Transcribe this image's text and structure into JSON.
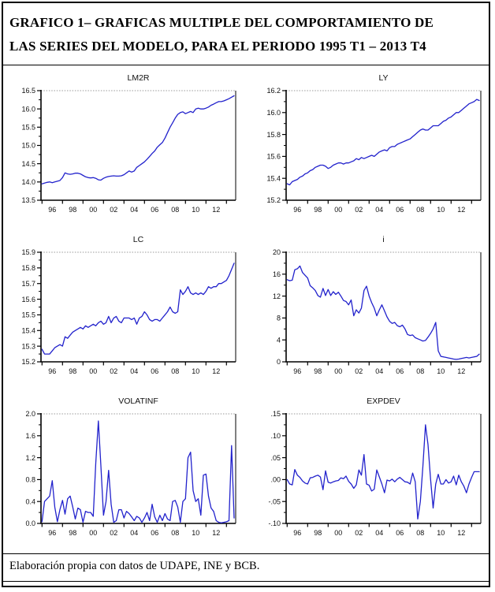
{
  "figure": {
    "title_line1": "GRAFICO 1– GRAFICAS MULTIPLE DEL COMPORTAMIENTO DE",
    "title_line2": "LAS SERIES DEL MODELO, PARA EL PERIODO 1995 T1 – 2013 T4",
    "caption": "Elaboración  propia con datos de UDAPE, INE y BCB."
  },
  "colors": {
    "series_line": "#2222cc",
    "axis": "#000000",
    "frame_dotted": "#999999",
    "text": "#111111"
  },
  "chart_data": [
    {
      "type": "line",
      "title": "LM2R",
      "x_start": 1995,
      "x_step": 0.25,
      "xlim": [
        1994.9,
        2013.9
      ],
      "xticks": [
        1995,
        1997,
        1999,
        2001,
        2003,
        2005,
        2007,
        2009,
        2011,
        2013
      ],
      "xlabel_pos": [
        1996,
        1998,
        2000,
        2002,
        2004,
        2006,
        2008,
        2010,
        2012
      ],
      "xlabels": [
        "96",
        "98",
        "00",
        "02",
        "04",
        "06",
        "08",
        "10",
        "12"
      ],
      "ylim": [
        13.5,
        16.5
      ],
      "yticks": [
        13.5,
        14.0,
        14.5,
        15.0,
        15.5,
        16.0,
        16.5
      ],
      "ytick_labels": [
        "13.5",
        "14.0",
        "14.5",
        "15.0",
        "15.5",
        "16.0",
        "16.5"
      ],
      "values": [
        13.95,
        13.97,
        13.99,
        14.0,
        13.98,
        14.0,
        14.02,
        14.04,
        14.12,
        14.25,
        14.22,
        14.21,
        14.22,
        14.24,
        14.24,
        14.22,
        14.18,
        14.14,
        14.12,
        14.11,
        14.12,
        14.1,
        14.06,
        14.05,
        14.1,
        14.13,
        14.15,
        14.16,
        14.17,
        14.16,
        14.16,
        14.17,
        14.2,
        14.25,
        14.3,
        14.27,
        14.3,
        14.4,
        14.45,
        14.5,
        14.55,
        14.62,
        14.7,
        14.78,
        14.85,
        14.95,
        15.02,
        15.08,
        15.2,
        15.35,
        15.5,
        15.62,
        15.75,
        15.85,
        15.9,
        15.92,
        15.87,
        15.9,
        15.93,
        15.9,
        16.0,
        16.02,
        16.0,
        16.0,
        16.02,
        16.05,
        16.1,
        16.13,
        16.17,
        16.2,
        16.2,
        16.22,
        16.25,
        16.28,
        16.32,
        16.36
      ]
    },
    {
      "type": "line",
      "title": "LY",
      "x_start": 1995,
      "x_step": 0.25,
      "xlim": [
        1994.9,
        2013.9
      ],
      "xticks": [
        1995,
        1997,
        1999,
        2001,
        2003,
        2005,
        2007,
        2009,
        2011,
        2013
      ],
      "xlabel_pos": [
        1996,
        1998,
        2000,
        2002,
        2004,
        2006,
        2008,
        2010,
        2012
      ],
      "xlabels": [
        "96",
        "98",
        "00",
        "02",
        "04",
        "06",
        "08",
        "10",
        "12"
      ],
      "ylim": [
        15.2,
        16.2
      ],
      "yticks": [
        15.2,
        15.4,
        15.6,
        15.8,
        16.0,
        16.2
      ],
      "ytick_labels": [
        "15.2",
        "15.4",
        "15.6",
        "15.8",
        "16.0",
        "16.2"
      ],
      "values": [
        15.35,
        15.34,
        15.37,
        15.38,
        15.39,
        15.41,
        15.42,
        15.44,
        15.45,
        15.47,
        15.48,
        15.5,
        15.51,
        15.52,
        15.52,
        15.51,
        15.49,
        15.5,
        15.52,
        15.53,
        15.54,
        15.54,
        15.53,
        15.54,
        15.54,
        15.55,
        15.56,
        15.58,
        15.57,
        15.59,
        15.58,
        15.59,
        15.6,
        15.61,
        15.6,
        15.62,
        15.64,
        15.65,
        15.66,
        15.65,
        15.68,
        15.69,
        15.69,
        15.71,
        15.72,
        15.73,
        15.74,
        15.75,
        15.76,
        15.78,
        15.8,
        15.82,
        15.84,
        15.85,
        15.84,
        15.84,
        15.86,
        15.88,
        15.88,
        15.88,
        15.9,
        15.92,
        15.93,
        15.95,
        15.96,
        15.98,
        16.0,
        16.0,
        16.02,
        16.04,
        16.06,
        16.08,
        16.09,
        16.1,
        16.12,
        16.11
      ]
    },
    {
      "type": "line",
      "title": "LC",
      "x_start": 1995,
      "x_step": 0.25,
      "xlim": [
        1994.9,
        2013.9
      ],
      "xticks": [
        1995,
        1997,
        1999,
        2001,
        2003,
        2005,
        2007,
        2009,
        2011,
        2013
      ],
      "xlabel_pos": [
        1996,
        1998,
        2000,
        2002,
        2004,
        2006,
        2008,
        2010,
        2012
      ],
      "xlabels": [
        "96",
        "98",
        "00",
        "02",
        "04",
        "06",
        "08",
        "10",
        "12"
      ],
      "ylim": [
        15.2,
        15.9
      ],
      "yticks": [
        15.2,
        15.3,
        15.4,
        15.5,
        15.6,
        15.7,
        15.8,
        15.9
      ],
      "ytick_labels": [
        "15.2",
        "15.3",
        "15.4",
        "15.5",
        "15.6",
        "15.7",
        "15.8",
        "15.9"
      ],
      "values": [
        15.28,
        15.25,
        15.25,
        15.25,
        15.27,
        15.29,
        15.3,
        15.31,
        15.3,
        15.36,
        15.35,
        15.37,
        15.39,
        15.4,
        15.41,
        15.42,
        15.41,
        15.43,
        15.42,
        15.43,
        15.44,
        15.43,
        15.45,
        15.46,
        15.44,
        15.45,
        15.49,
        15.45,
        15.48,
        15.49,
        15.46,
        15.45,
        15.48,
        15.48,
        15.48,
        15.47,
        15.48,
        15.44,
        15.48,
        15.49,
        15.52,
        15.5,
        15.47,
        15.46,
        15.47,
        15.47,
        15.46,
        15.48,
        15.5,
        15.52,
        15.55,
        15.52,
        15.51,
        15.52,
        15.66,
        15.63,
        15.65,
        15.68,
        15.64,
        15.63,
        15.64,
        15.63,
        15.64,
        15.63,
        15.65,
        15.68,
        15.67,
        15.68,
        15.68,
        15.7,
        15.7,
        15.71,
        15.72,
        15.75,
        15.79,
        15.83
      ]
    },
    {
      "type": "line",
      "title": "i",
      "x_start": 1995,
      "x_step": 0.25,
      "xlim": [
        1994.9,
        2013.9
      ],
      "xticks": [
        1995,
        1997,
        1999,
        2001,
        2003,
        2005,
        2007,
        2009,
        2011,
        2013
      ],
      "xlabel_pos": [
        1996,
        1998,
        2000,
        2002,
        2004,
        2006,
        2008,
        2010,
        2012
      ],
      "xlabels": [
        "96",
        "98",
        "00",
        "02",
        "04",
        "06",
        "08",
        "10",
        "12"
      ],
      "ylim": [
        0,
        20
      ],
      "yticks": [
        0,
        4,
        8,
        12,
        16,
        20
      ],
      "ytick_labels": [
        "0",
        "4",
        "8",
        "12",
        "16",
        "20"
      ],
      "values": [
        15.0,
        14.8,
        14.9,
        16.8,
        17.0,
        17.5,
        16.3,
        15.8,
        15.3,
        13.9,
        13.5,
        13.0,
        12.1,
        11.8,
        13.4,
        12.1,
        13.2,
        12.1,
        12.8,
        12.3,
        12.7,
        12.0,
        11.2,
        11.0,
        10.4,
        11.3,
        8.4,
        9.5,
        8.9,
        9.8,
        13.0,
        13.8,
        12.0,
        10.8,
        9.8,
        8.4,
        9.5,
        10.4,
        9.3,
        8.2,
        7.4,
        7.0,
        7.2,
        6.6,
        6.4,
        6.7,
        6.0,
        5.0,
        4.8,
        4.9,
        4.4,
        4.2,
        4.0,
        3.8,
        3.9,
        4.5,
        5.2,
        6.0,
        7.2,
        2.0,
        1.0,
        0.9,
        0.8,
        0.7,
        0.6,
        0.5,
        0.45,
        0.5,
        0.6,
        0.7,
        0.8,
        0.7,
        0.8,
        0.9,
        1.0,
        1.4
      ]
    },
    {
      "type": "line",
      "title": "VOLATINF",
      "x_start": 1995,
      "x_step": 0.25,
      "xlim": [
        1994.9,
        2013.9
      ],
      "xticks": [
        1995,
        1997,
        1999,
        2001,
        2003,
        2005,
        2007,
        2009,
        2011,
        2013
      ],
      "xlabel_pos": [
        1996,
        1998,
        2000,
        2002,
        2004,
        2006,
        2008,
        2010,
        2012
      ],
      "xlabels": [
        "96",
        "98",
        "00",
        "02",
        "04",
        "06",
        "08",
        "10",
        "12"
      ],
      "ylim": [
        0.0,
        2.0
      ],
      "yticks": [
        0.0,
        0.4,
        0.8,
        1.2,
        1.6,
        2.0
      ],
      "ytick_labels": [
        "0.0",
        "0.4",
        "0.8",
        "1.2",
        "1.6",
        "2.0"
      ],
      "values": [
        0.03,
        0.4,
        0.45,
        0.5,
        0.78,
        0.3,
        0.03,
        0.25,
        0.42,
        0.17,
        0.45,
        0.5,
        0.3,
        0.08,
        0.28,
        0.25,
        0.02,
        0.22,
        0.2,
        0.2,
        0.13,
        1.1,
        1.87,
        1.05,
        0.15,
        0.4,
        0.97,
        0.35,
        0.02,
        0.05,
        0.25,
        0.25,
        0.1,
        0.22,
        0.18,
        0.12,
        0.05,
        0.13,
        0.1,
        0.02,
        0.1,
        0.2,
        0.05,
        0.35,
        0.12,
        0.02,
        0.15,
        0.05,
        0.18,
        0.08,
        0.05,
        0.4,
        0.42,
        0.3,
        0.02,
        0.4,
        0.45,
        1.2,
        1.3,
        0.6,
        0.4,
        0.45,
        0.15,
        0.88,
        0.9,
        0.5,
        0.28,
        0.22,
        0.05,
        0.02,
        0.01,
        0.02,
        0.03,
        0.05,
        1.42,
        0.1
      ]
    },
    {
      "type": "line",
      "title": "EXPDEV",
      "x_start": 1995,
      "x_step": 0.25,
      "xlim": [
        1994.9,
        2013.9
      ],
      "xticks": [
        1995,
        1997,
        1999,
        2001,
        2003,
        2005,
        2007,
        2009,
        2011,
        2013
      ],
      "xlabel_pos": [
        1996,
        1998,
        2000,
        2002,
        2004,
        2006,
        2008,
        2010,
        2012
      ],
      "xlabels": [
        "96",
        "98",
        "00",
        "02",
        "04",
        "06",
        "08",
        "10",
        "12"
      ],
      "ylim": [
        -0.1,
        0.15
      ],
      "yticks": [
        -0.1,
        -0.05,
        0.0,
        0.05,
        0.1,
        0.15
      ],
      "ytick_labels": [
        "-.10",
        "-.05",
        ".00",
        ".05",
        ".10",
        ".15"
      ],
      "values": [
        0.0,
        -0.01,
        -0.012,
        0.023,
        0.01,
        0.005,
        -0.003,
        -0.008,
        -0.01,
        0.004,
        0.005,
        0.008,
        0.01,
        0.006,
        -0.023,
        0.02,
        -0.006,
        -0.008,
        -0.005,
        -0.003,
        -0.002,
        0.004,
        0.002,
        0.008,
        -0.004,
        -0.01,
        -0.02,
        -0.012,
        0.022,
        0.01,
        0.057,
        -0.01,
        -0.013,
        -0.026,
        -0.022,
        0.022,
        0.006,
        -0.01,
        -0.03,
        -0.001,
        -0.003,
        0.001,
        -0.005,
        0.001,
        0.005,
        0.0,
        -0.005,
        -0.006,
        -0.01,
        0.015,
        -0.005,
        -0.09,
        -0.05,
        0.03,
        0.125,
        0.08,
        0.0,
        -0.065,
        -0.01,
        0.012,
        -0.01,
        -0.01,
        0.0,
        -0.008,
        -0.005,
        0.008,
        -0.012,
        0.01,
        -0.005,
        -0.015,
        -0.03,
        -0.01,
        0.005,
        0.018,
        0.018,
        0.018
      ]
    }
  ]
}
